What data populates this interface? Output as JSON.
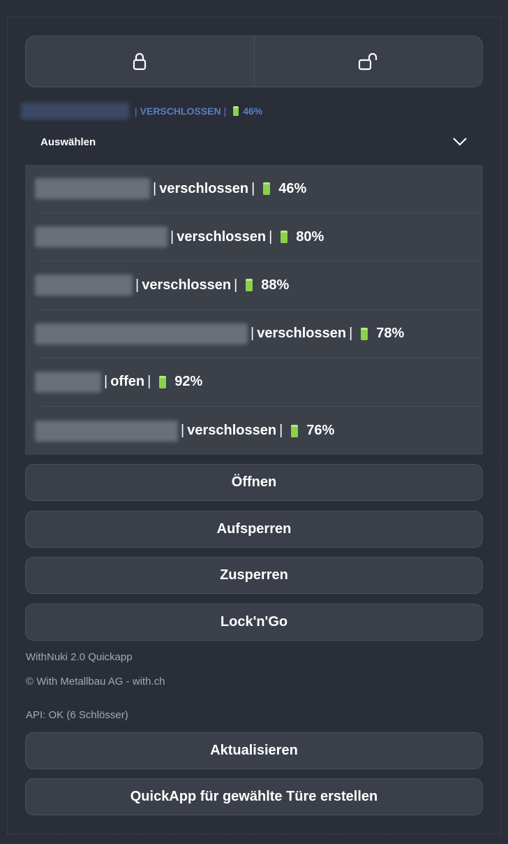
{
  "lock_buttons": [
    {
      "icon": "lock-closed-icon"
    },
    {
      "icon": "lock-open-icon"
    }
  ],
  "current": {
    "state": "VERSCHLOSSEN",
    "battery": "46%"
  },
  "select": {
    "label": "Auswählen"
  },
  "locks": [
    {
      "state": "verschlossen",
      "battery": "46%"
    },
    {
      "state": "verschlossen",
      "battery": "80%"
    },
    {
      "state": "verschlossen",
      "battery": "88%"
    },
    {
      "state": "verschlossen",
      "battery": "78%"
    },
    {
      "state": "offen",
      "battery": "92%"
    },
    {
      "state": "verschlossen",
      "battery": "76%"
    }
  ],
  "actions": {
    "open": "Öffnen",
    "unlock": "Aufsperren",
    "lock": "Zusperren",
    "lockngo": "Lock'n'Go",
    "refresh": "Aktualisieren",
    "create": "QuickApp für gewählte Türe erstellen"
  },
  "info": {
    "title": "WithNuki 2.0 Quickapp",
    "copyright": "© With Metallbau AG - with.ch",
    "api": "API: OK (6 Schlösser)"
  },
  "separator": "|",
  "colors": {
    "accent": "#5b7fc0",
    "battery": "#8bd14a",
    "bg": "#2a2e39",
    "panel": "#3a3f49"
  }
}
